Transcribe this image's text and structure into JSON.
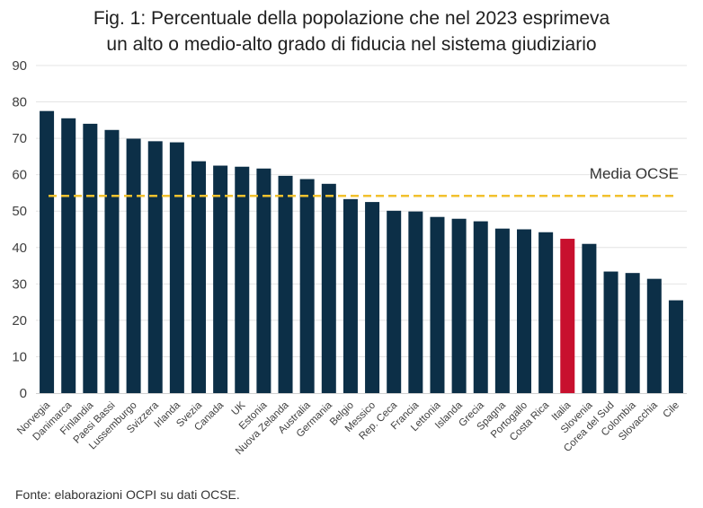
{
  "chart_data": {
    "type": "bar",
    "title_lines": [
      "Fig. 1: Percentuale della popolazione che nel 2023 esprimeva",
      "un alto o medio-alto grado di fiducia nel sistema giudiziario"
    ],
    "categories": [
      "Norvegia",
      "Danimarca",
      "Finlandia",
      "Paesi Bassi",
      "Lussemburgo",
      "Svizzera",
      "Irlanda",
      "Svezia",
      "Canada",
      "UK",
      "Estonia",
      "Nuova Zelanda",
      "Australia",
      "Germania",
      "Belgio",
      "Messico",
      "Rep. Ceca",
      "Francia",
      "Lettonia",
      "Islanda",
      "Grecia",
      "Spagna",
      "Portogallo",
      "Costa Rica",
      "Italia",
      "Slovenia",
      "Corea del Sud",
      "Colombia",
      "Slovacchia",
      "Cile"
    ],
    "values": [
      77.5,
      75.5,
      74,
      72.3,
      69.9,
      69.2,
      68.9,
      63.7,
      62.5,
      62.2,
      61.7,
      59.7,
      58.8,
      57.5,
      53.3,
      52.5,
      50.1,
      49.9,
      48.4,
      47.9,
      47.2,
      45.2,
      45,
      44.2,
      42.4,
      41,
      33.4,
      33,
      31.4,
      25.5
    ],
    "highlight": {
      "category": "Italia",
      "color": "#c8102e"
    },
    "bar_color": "#0c2f47",
    "ylim": [
      0,
      90
    ],
    "yticks": [
      0,
      10,
      20,
      30,
      40,
      50,
      60,
      70,
      80,
      90
    ],
    "reference_line": {
      "label": "Media OCSE",
      "value": 54.2,
      "color": "#f2c12e",
      "style": "dashed"
    },
    "grid": true,
    "source_note": "Fonte: elaborazioni OCPI su dati OCSE."
  }
}
